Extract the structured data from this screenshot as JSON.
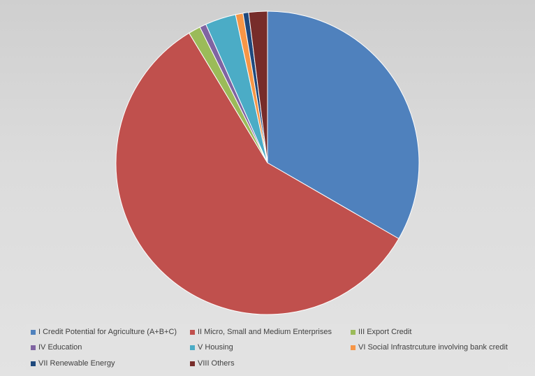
{
  "chart_data": {
    "type": "pie",
    "title": "",
    "legend_position": "bottom",
    "slices": [
      {
        "label": "I Credit Potential for Agriculture (A+B+C)",
        "value": 33.5,
        "color": "#4f81bd"
      },
      {
        "label": "II Micro, Small and Medium Enterprises",
        "value": 58.3,
        "color": "#c0504d"
      },
      {
        "label": "III Export Credit",
        "value": 1.3,
        "color": "#9bbb59"
      },
      {
        "label": "IV Education",
        "value": 0.7,
        "color": "#8064a2"
      },
      {
        "label": "V Housing",
        "value": 3.3,
        "color": "#4bacc6"
      },
      {
        "label": "VI Social Infrastrcuture involving bank credit",
        "value": 0.8,
        "color": "#f79646"
      },
      {
        "label": "VII Renewable Energy",
        "value": 0.6,
        "color": "#1f497d"
      },
      {
        "label": "VIII Others",
        "value": 2.0,
        "color": "#772c2a"
      }
    ]
  }
}
